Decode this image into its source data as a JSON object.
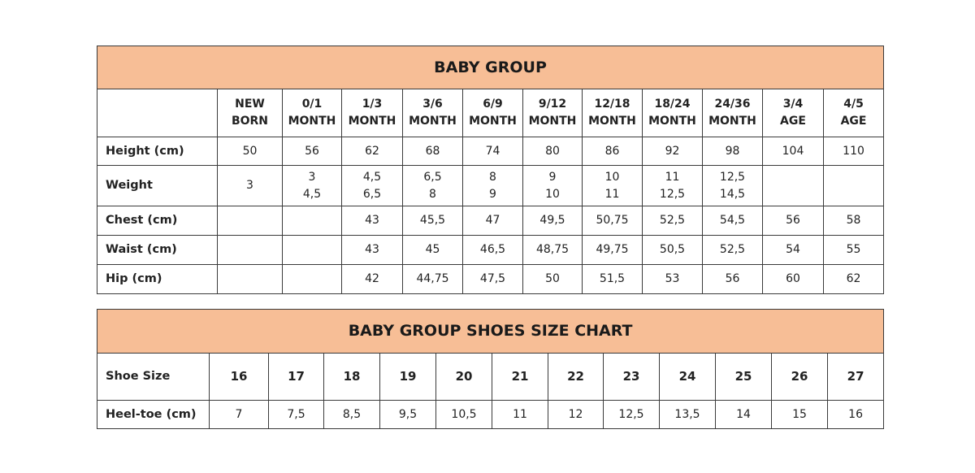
{
  "size_chart": {
    "title": "BABY GROUP",
    "columns": [
      [
        "NEW",
        "BORN"
      ],
      [
        "0/1",
        "MONTH"
      ],
      [
        "1/3",
        "MONTH"
      ],
      [
        "3/6",
        "MONTH"
      ],
      [
        "6/9",
        "MONTH"
      ],
      [
        "9/12",
        "MONTH"
      ],
      [
        "12/18",
        "MONTH"
      ],
      [
        "18/24",
        "MONTH"
      ],
      [
        "24/36",
        "MONTH"
      ],
      [
        "3/4",
        "AGE"
      ],
      [
        "4/5",
        "AGE"
      ]
    ],
    "rows": [
      {
        "label": "Height (cm)",
        "values": [
          [
            "50"
          ],
          [
            "56"
          ],
          [
            "62"
          ],
          [
            "68"
          ],
          [
            "74"
          ],
          [
            "80"
          ],
          [
            "86"
          ],
          [
            "92"
          ],
          [
            "98"
          ],
          [
            "104"
          ],
          [
            "110"
          ]
        ]
      },
      {
        "label": "Weight",
        "values": [
          [
            "3"
          ],
          [
            "3",
            "4,5"
          ],
          [
            "4,5",
            "6,5"
          ],
          [
            "6,5",
            "8"
          ],
          [
            "8",
            "9"
          ],
          [
            "9",
            "10"
          ],
          [
            "10",
            "11"
          ],
          [
            "11",
            "12,5"
          ],
          [
            "12,5",
            "14,5"
          ],
          [],
          []
        ]
      },
      {
        "label": "Chest (cm)",
        "values": [
          [],
          [],
          [
            "43"
          ],
          [
            "45,5"
          ],
          [
            "47"
          ],
          [
            "49,5"
          ],
          [
            "50,75"
          ],
          [
            "52,5"
          ],
          [
            "54,5"
          ],
          [
            "56"
          ],
          [
            "58"
          ]
        ]
      },
      {
        "label": "Waist (cm)",
        "values": [
          [],
          [],
          [
            "43"
          ],
          [
            "45"
          ],
          [
            "46,5"
          ],
          [
            "48,75"
          ],
          [
            "49,75"
          ],
          [
            "50,5"
          ],
          [
            "52,5"
          ],
          [
            "54"
          ],
          [
            "55"
          ]
        ]
      },
      {
        "label": "Hip (cm)",
        "values": [
          [],
          [],
          [
            "42"
          ],
          [
            "44,75"
          ],
          [
            "47,5"
          ],
          [
            "50"
          ],
          [
            "51,5"
          ],
          [
            "53"
          ],
          [
            "56"
          ],
          [
            "60"
          ],
          [
            "62"
          ]
        ]
      }
    ]
  },
  "shoe_chart": {
    "title": "BABY GROUP SHOES SIZE CHART",
    "size_label": "Shoe Size",
    "sizes": [
      "16",
      "17",
      "18",
      "19",
      "20",
      "21",
      "22",
      "23",
      "24",
      "25",
      "26",
      "27"
    ],
    "heel_label": "Heel-toe (cm)",
    "heel_toe": [
      "7",
      "7,5",
      "8,5",
      "9,5",
      "10,5",
      "11",
      "12",
      "12,5",
      "13,5",
      "14",
      "15",
      "16"
    ]
  },
  "colors": {
    "header_bg": "#f7be96",
    "border": "#3a3a3a"
  }
}
